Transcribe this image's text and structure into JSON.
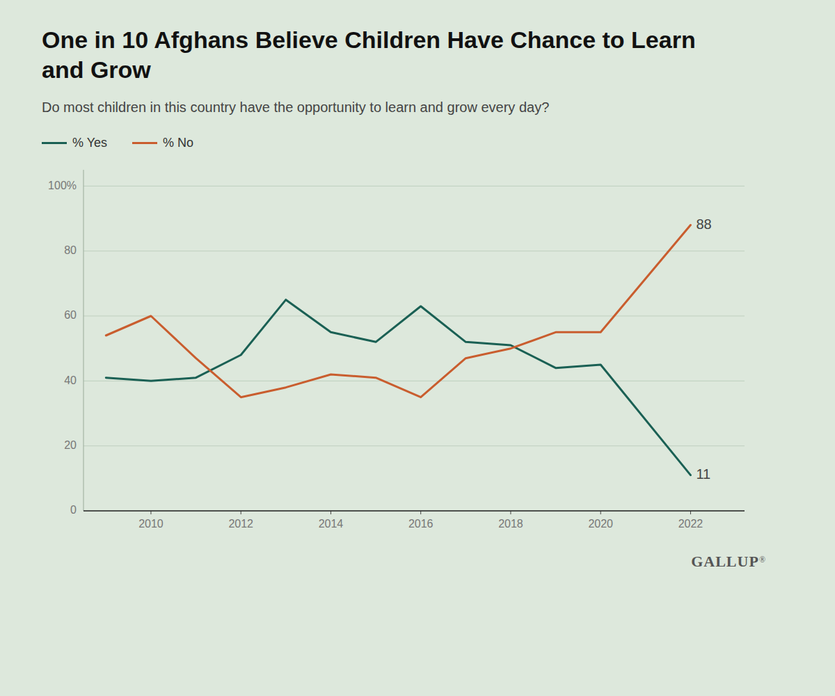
{
  "chart_data": {
    "type": "line",
    "title": "One in 10 Afghans Believe Children Have Chance to Learn and Grow",
    "subtitle": "Do most children in this country have the opportunity to learn and grow every day?",
    "x": [
      2009,
      2010,
      2011,
      2012,
      2013,
      2014,
      2015,
      2016,
      2017,
      2018,
      2019,
      2020,
      2022
    ],
    "series": [
      {
        "name": "% Yes",
        "color": "#1a6054",
        "values": [
          41,
          40,
          41,
          48,
          65,
          55,
          52,
          63,
          52,
          51,
          44,
          45,
          11
        ]
      },
      {
        "name": "% No",
        "color": "#c95d2e",
        "values": [
          54,
          60,
          47,
          35,
          38,
          42,
          41,
          35,
          47,
          50,
          55,
          55,
          88
        ]
      }
    ],
    "xlim": [
      2008.5,
      2023.2
    ],
    "xticks": [
      2010,
      2012,
      2014,
      2016,
      2018,
      2020,
      2022
    ],
    "ylim": [
      0,
      105
    ],
    "yticks": [
      0,
      20,
      40,
      60,
      80,
      {
        "value": 100,
        "label": "100%"
      }
    ],
    "grid": true,
    "legend": "upper left",
    "annotations": [
      {
        "text": "11",
        "x": 2022,
        "y": 11
      },
      {
        "text": "88",
        "x": 2022,
        "y": 88
      }
    ],
    "source": "GALLUP",
    "source_mark": "®"
  }
}
